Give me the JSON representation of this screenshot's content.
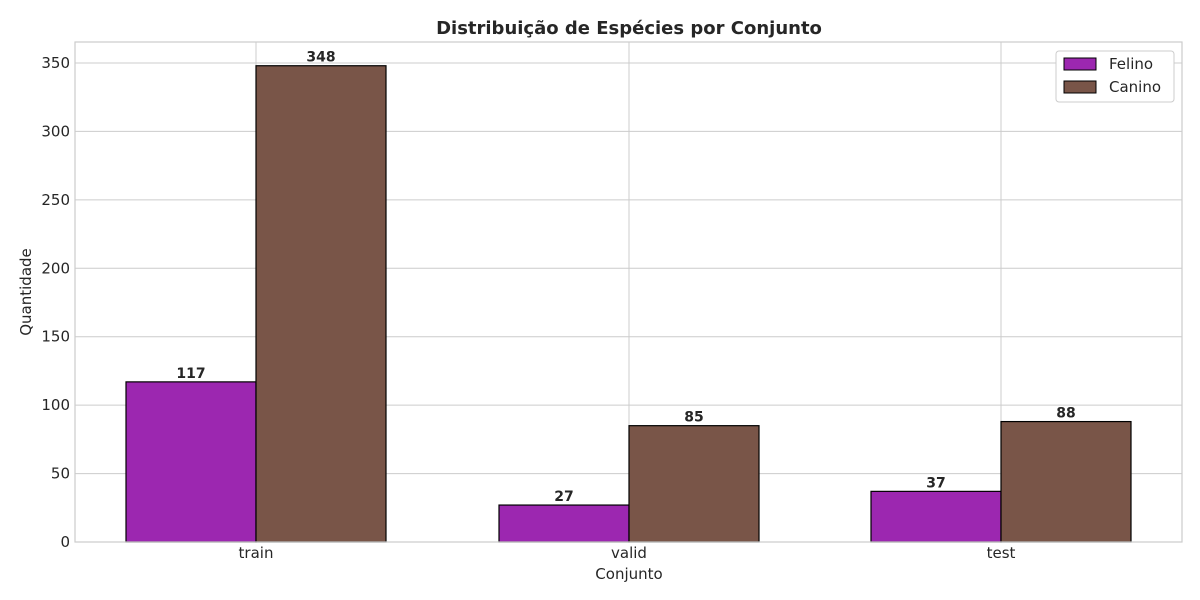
{
  "chart_data": {
    "type": "bar",
    "title": "Distribuição de Espécies por Conjunto",
    "xlabel": "Conjunto",
    "ylabel": "Quantidade",
    "categories": [
      "train",
      "valid",
      "test"
    ],
    "series": [
      {
        "name": "Felino",
        "values": [
          117,
          27,
          37
        ],
        "color": "#9c27b0"
      },
      {
        "name": "Canino",
        "values": [
          348,
          85,
          88
        ],
        "color": "#795548"
      }
    ],
    "ylim": [
      0,
      365
    ],
    "yticks": [
      0,
      50,
      100,
      150,
      200,
      250,
      300,
      350
    ],
    "grid": true,
    "legend_position": "top-right",
    "bar_edge_color": "#000000",
    "grid_color": "#cccccc"
  }
}
